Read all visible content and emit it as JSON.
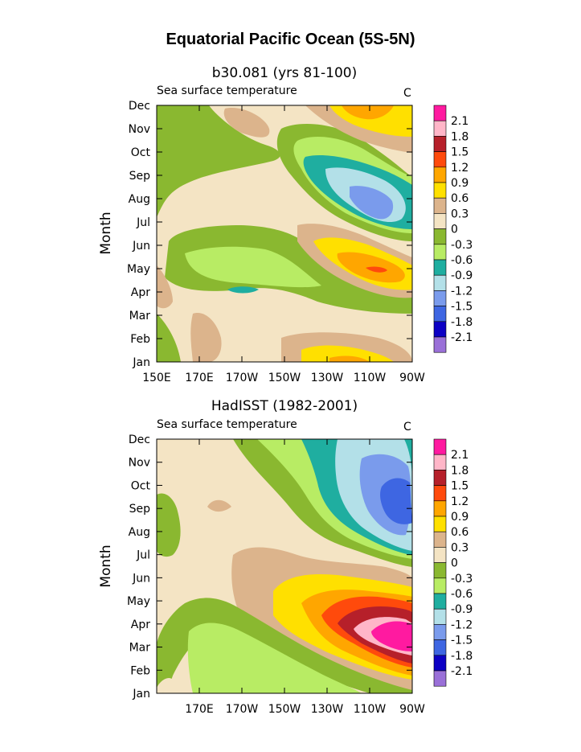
{
  "title": "Equatorial Pacific Ocean (5S-5N)",
  "colors": {
    "levels": [
      "#9a70d8",
      "#0c00c4",
      "#3e66e2",
      "#7a9bec",
      "#b3e0e8",
      "#1faea0",
      "#b8ec64",
      "#8ab830",
      "#f4e4c4",
      "#dcb48c",
      "#ffe000",
      "#ffa600",
      "#ff4a0c",
      "#b6202a",
      "#ffb6c8",
      "#ff1aa0"
    ],
    "fills": {
      "tan": "#f4e4c4",
      "brown": "#dcb48c",
      "lime": "#b8ec64",
      "green": "#8ab830",
      "teal": "#1faea0",
      "lblue": "#b3e0e8",
      "mblue": "#7a9bec",
      "blue": "#3e66e2",
      "yellow": "#ffe000",
      "orange": "#ffa600",
      "redorange": "#ff4a0c",
      "darkred": "#b6202a",
      "pink": "#ffb6c8",
      "magenta": "#ff1aa0"
    }
  },
  "chart_data": [
    {
      "type": "heatmap",
      "title": "b30.081 (yrs 81-100)",
      "subtitle": "Sea surface temperature",
      "units": "C",
      "ylabel": "Month",
      "x_ticks": [
        "150E",
        "170E",
        "170W",
        "150W",
        "130W",
        "110W",
        "90W"
      ],
      "x_range": [
        "150E",
        "90W"
      ],
      "y_ticks": [
        "Jan",
        "Feb",
        "Mar",
        "Apr",
        "May",
        "Jun",
        "Jul",
        "Aug",
        "Sep",
        "Oct",
        "Nov",
        "Dec"
      ],
      "colorbar_labels": [
        "2.1",
        "1.8",
        "1.5",
        "1.2",
        "0.9",
        "0.6",
        "0.3",
        "0",
        "-0.3",
        "-0.6",
        "-0.9",
        "-1.2",
        "-1.5",
        "-1.8",
        "-2.1"
      ],
      "levels": [
        -2.1,
        -1.8,
        -1.5,
        -1.2,
        -0.9,
        -0.6,
        -0.3,
        0,
        0.3,
        0.6,
        0.9,
        1.2,
        1.5,
        1.8,
        2.1
      ],
      "features": [
        {
          "region": "110W-90W, Dec",
          "value_range": [
            0.6,
            0.9
          ]
        },
        {
          "region": "120W-100W, Aug-Sep",
          "value_range": [
            -1.5,
            -1.2
          ]
        },
        {
          "region": "110W-95W, May",
          "value_range": [
            1.2,
            1.5
          ]
        },
        {
          "region": "170W, Apr",
          "value_range": [
            -0.9,
            -0.6
          ]
        },
        {
          "region": "140W-110W, Jan",
          "value_range": [
            0.6,
            0.9
          ]
        }
      ]
    },
    {
      "type": "heatmap",
      "title": "HadISST (1982-2001)",
      "subtitle": "Sea surface temperature",
      "units": "C",
      "ylabel": "Month",
      "x_ticks": [
        "170E",
        "170W",
        "150W",
        "130W",
        "110W",
        "90W"
      ],
      "x_range": [
        "150E",
        "90W"
      ],
      "y_ticks": [
        "Jan",
        "Feb",
        "Mar",
        "Apr",
        "May",
        "Jun",
        "Jul",
        "Aug",
        "Sep",
        "Oct",
        "Nov",
        "Dec"
      ],
      "colorbar_labels": [
        "2.1",
        "1.8",
        "1.5",
        "1.2",
        "0.9",
        "0.6",
        "0.3",
        "0",
        "-0.3",
        "-0.6",
        "-0.9",
        "-1.2",
        "-1.5",
        "-1.8",
        "-2.1"
      ],
      "levels": [
        -2.1,
        -1.8,
        -1.5,
        -1.2,
        -0.9,
        -0.6,
        -0.3,
        0,
        0.3,
        0.6,
        0.9,
        1.2,
        1.5,
        1.8,
        2.1
      ],
      "features": [
        {
          "region": "100W-90W, Mar-Apr",
          "value_range": [
            2.1,
            2.4
          ]
        },
        {
          "region": "100W-90W, Sep-Oct",
          "value_range": [
            -1.8,
            -1.5
          ]
        },
        {
          "region": "150E-170W, Jan-Dec",
          "value_range": [
            0,
            0.3
          ]
        }
      ]
    }
  ]
}
